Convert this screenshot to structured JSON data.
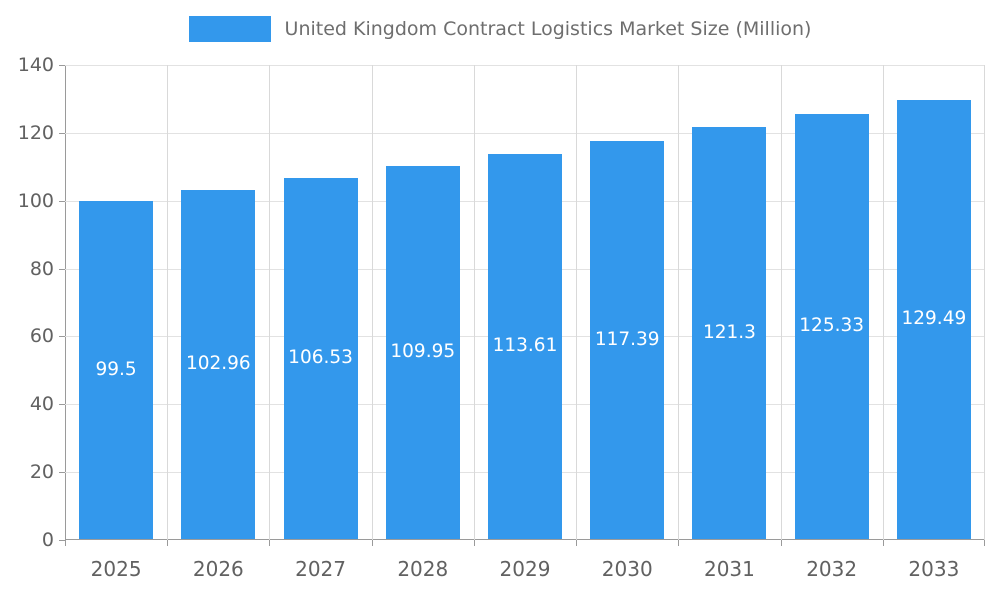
{
  "chart_data": {
    "type": "bar",
    "title": "United Kingdom Contract Logistics Market Size (Million)",
    "categories": [
      "2025",
      "2026",
      "2027",
      "2028",
      "2029",
      "2030",
      "2031",
      "2032",
      "2033"
    ],
    "values": [
      99.5,
      102.96,
      106.53,
      109.95,
      113.61,
      117.39,
      121.3,
      125.33,
      129.49
    ],
    "value_labels": [
      "99.5",
      "102.96",
      "106.53",
      "109.95",
      "113.61",
      "117.39",
      "121.3",
      "125.33",
      "129.49"
    ],
    "xlabel": "",
    "ylabel": "",
    "ylim": [
      0,
      140
    ],
    "yticks": [
      0,
      20,
      40,
      60,
      80,
      100,
      120,
      140
    ],
    "grid": true,
    "legend_position": "top",
    "bar_color": "#3398EC",
    "value_label_color": "#FFFFFF",
    "axis_label_color": "#616161"
  }
}
